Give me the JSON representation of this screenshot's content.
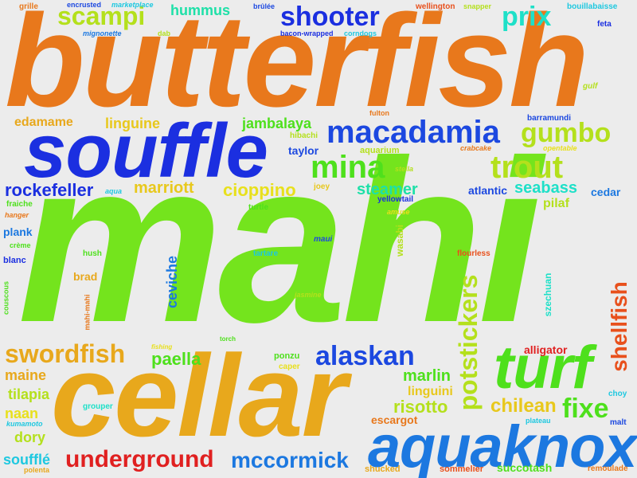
{
  "colors": {
    "orange": "#e8781c",
    "blue": "#1b2fe0",
    "green": "#74e41d",
    "gold": "#e8a81c",
    "red": "#e02020",
    "teal": "#1ee0c8",
    "skyblue": "#1c78e0",
    "lime": "#b4e01c",
    "background": "#ececec"
  },
  "words": [
    {
      "text": "butterfish",
      "color": "#e8781c"
    },
    {
      "text": "mahi",
      "color": "#74e41d"
    },
    {
      "text": "cellar",
      "color": "#e8a81c"
    },
    {
      "text": "souffle",
      "color": "#1b2fe0"
    },
    {
      "text": "aquaknox",
      "color": "#1c78e0"
    },
    {
      "text": "turf",
      "color": "#4ee01c"
    },
    {
      "text": "macadamia",
      "color": "#1c48e0"
    },
    {
      "text": "shooter",
      "color": "#1b2fe0"
    },
    {
      "text": "scampi",
      "color": "#b4e01c"
    },
    {
      "text": "prix",
      "color": "#1ee0c8"
    },
    {
      "text": "mina",
      "color": "#4ee01c"
    },
    {
      "text": "gumbo",
      "color": "#b4e01c"
    },
    {
      "text": "trout",
      "color": "#b4e01c"
    },
    {
      "text": "swordfish",
      "color": "#e8a81c"
    },
    {
      "text": "alaskan",
      "color": "#1c48e0"
    },
    {
      "text": "underground",
      "color": "#e02020"
    },
    {
      "text": "mccormick",
      "color": "#1c78e0"
    },
    {
      "text": "potstickers",
      "color": "#b4e01c"
    },
    {
      "text": "shellfish",
      "color": "#e8501c"
    },
    {
      "text": "fixe",
      "color": "#4ee01c"
    },
    {
      "text": "chilean",
      "color": "#e8c81c"
    },
    {
      "text": "rockefeller",
      "color": "#1b2fe0"
    },
    {
      "text": "cioppino",
      "color": "#e8e01c"
    },
    {
      "text": "marriott",
      "color": "#e8c81c"
    },
    {
      "text": "steamer",
      "color": "#1ee0a8"
    },
    {
      "text": "seabass",
      "color": "#1ee0c8"
    },
    {
      "text": "jambalaya",
      "color": "#4ee01c"
    },
    {
      "text": "linguine",
      "color": "#e8c81c"
    },
    {
      "text": "edamame",
      "color": "#e8a81c"
    },
    {
      "text": "hummus",
      "color": "#1ee0a8"
    },
    {
      "text": "paella",
      "color": "#4ee01c"
    },
    {
      "text": "risotto",
      "color": "#b4e01c"
    },
    {
      "text": "marlin",
      "color": "#4ee01c"
    },
    {
      "text": "linguini",
      "color": "#e8c81c"
    },
    {
      "text": "tilapia",
      "color": "#b4e01c"
    },
    {
      "text": "maine",
      "color": "#e8a81c"
    },
    {
      "text": "naan",
      "color": "#e8e01c"
    },
    {
      "text": "dory",
      "color": "#b4e01c"
    },
    {
      "text": "soufflé",
      "color": "#1ec8e0"
    },
    {
      "text": "ceviche",
      "color": "#1c78e0"
    },
    {
      "text": "pilaf",
      "color": "#b4e01c"
    },
    {
      "text": "cedar",
      "color": "#1c78e0"
    },
    {
      "text": "atlantic",
      "color": "#1c48e0"
    },
    {
      "text": "taylor",
      "color": "#1c48e0"
    },
    {
      "text": "alligator",
      "color": "#e02020"
    },
    {
      "text": "escargot",
      "color": "#e8781c"
    },
    {
      "text": "succotash",
      "color": "#4ee01c"
    },
    {
      "text": "plank",
      "color": "#1c78e0"
    },
    {
      "text": "brad",
      "color": "#e8a81c"
    },
    {
      "text": "wasabi",
      "color": "#b4e01c"
    },
    {
      "text": "szechuan",
      "color": "#1ee0c8"
    },
    {
      "text": "grille",
      "color": "#e8781c"
    },
    {
      "text": "encrusted",
      "color": "#1c48e0"
    },
    {
      "text": "marketplace",
      "color": "#1ec8e0"
    },
    {
      "text": "brûlée",
      "color": "#1c48e0"
    },
    {
      "text": "wellington",
      "color": "#e8501c"
    },
    {
      "text": "snapper",
      "color": "#b4e01c"
    },
    {
      "text": "bouillabaisse",
      "color": "#1ec8e0"
    },
    {
      "text": "mignonette",
      "color": "#1c78e0"
    },
    {
      "text": "dab",
      "color": "#b4e01c"
    },
    {
      "text": "bacon-wrapped",
      "color": "#1b2fe0"
    },
    {
      "text": "corndogs",
      "color": "#1ec8e0"
    },
    {
      "text": "feta",
      "color": "#1b2fe0"
    },
    {
      "text": "gulf",
      "color": "#b4e01c"
    },
    {
      "text": "fulton",
      "color": "#e8781c"
    },
    {
      "text": "barramundi",
      "color": "#1c48e0"
    },
    {
      "text": "hibachi",
      "color": "#b4e01c"
    },
    {
      "text": "aquarium",
      "color": "#b4e01c"
    },
    {
      "text": "crabcake",
      "color": "#e8781c"
    },
    {
      "text": "opentable",
      "color": "#e8e01c"
    },
    {
      "text": "stella",
      "color": "#b4e01c"
    },
    {
      "text": "aqua",
      "color": "#1ec8e0"
    },
    {
      "text": "joey",
      "color": "#e8c81c"
    },
    {
      "text": "fraiche",
      "color": "#4ee01c"
    },
    {
      "text": "turtle",
      "color": "#4ee01c"
    },
    {
      "text": "yellowtail",
      "color": "#1b2fe0"
    },
    {
      "text": "hanger",
      "color": "#e8781c"
    },
    {
      "text": "amuse",
      "color": "#e8e01c"
    },
    {
      "text": "crème",
      "color": "#4ee01c"
    },
    {
      "text": "maui",
      "color": "#1c48e0"
    },
    {
      "text": "hush",
      "color": "#4ee01c"
    },
    {
      "text": "tartare",
      "color": "#1ec8e0"
    },
    {
      "text": "flourless",
      "color": "#e8501c"
    },
    {
      "text": "blanc",
      "color": "#1b2fe0"
    },
    {
      "text": "couscous",
      "color": "#4ee01c"
    },
    {
      "text": "jasmine",
      "color": "#b4e01c"
    },
    {
      "text": "mahi-mahi",
      "color": "#e8781c"
    },
    {
      "text": "torch",
      "color": "#4ee01c"
    },
    {
      "text": "fishing",
      "color": "#e8e01c"
    },
    {
      "text": "ponzu",
      "color": "#4ee01c"
    },
    {
      "text": "caper",
      "color": "#e8e01c"
    },
    {
      "text": "grouper",
      "color": "#1ee0c8"
    },
    {
      "text": "kumamoto",
      "color": "#1ec8e0"
    },
    {
      "text": "plateau",
      "color": "#1ec8e0"
    },
    {
      "text": "choy",
      "color": "#1ec8e0"
    },
    {
      "text": "malt",
      "color": "#1c48e0"
    },
    {
      "text": "polenta",
      "color": "#e8a81c"
    },
    {
      "text": "shucked",
      "color": "#e8a81c"
    },
    {
      "text": "sommelier",
      "color": "#e8501c"
    },
    {
      "text": "remoulade",
      "color": "#e8781c"
    }
  ]
}
